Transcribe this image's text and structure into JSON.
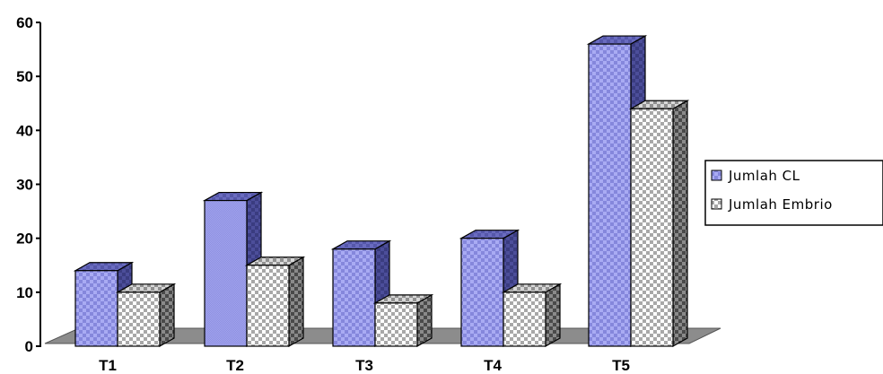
{
  "chart_data": {
    "type": "bar",
    "style": "3d-clustered-column",
    "categories": [
      "T1",
      "T2",
      "T3",
      "T4",
      "T5"
    ],
    "series": [
      {
        "name": "Jumlah CL",
        "values": [
          14,
          27,
          18,
          20,
          56
        ],
        "color": "#9a9ce8",
        "pattern": "checker-blue"
      },
      {
        "name": "Jumlah Embrio",
        "values": [
          10,
          15,
          8,
          10,
          44
        ],
        "color": "#ffffff",
        "pattern": "checker-gray"
      }
    ],
    "yticks": [
      0,
      10,
      20,
      30,
      40,
      50,
      60
    ],
    "ylim": [
      0,
      60
    ],
    "title": "",
    "xlabel": "",
    "ylabel": "",
    "grid": false,
    "legend": "right",
    "floor_color": "#8c8c8c"
  }
}
